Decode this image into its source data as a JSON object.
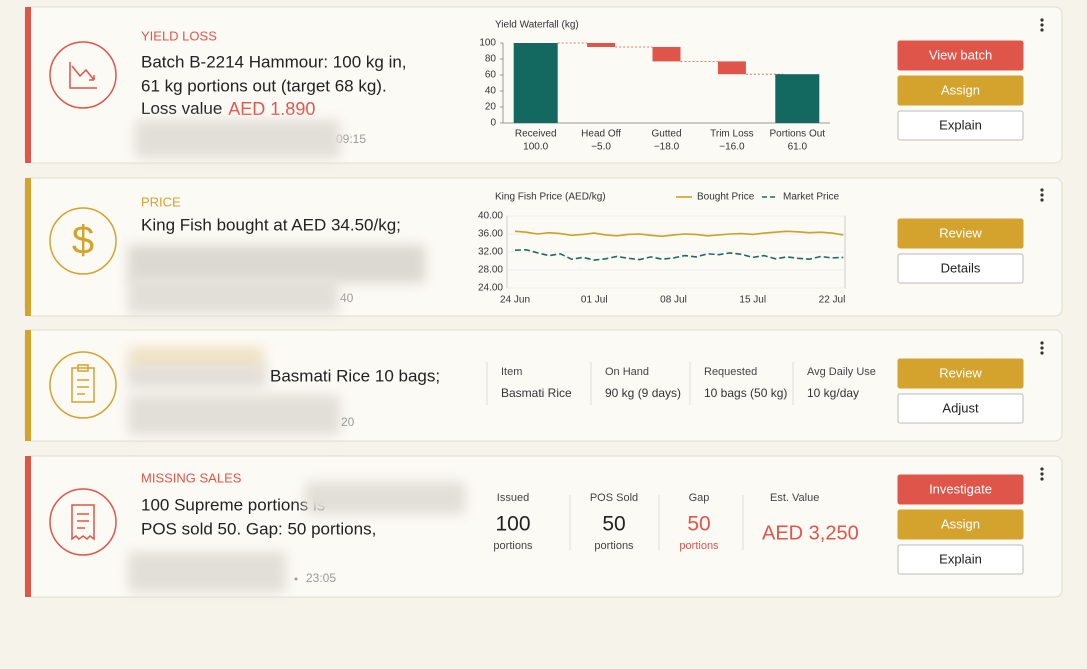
{
  "cards": [
    {
      "tag": "YIELD LOSS",
      "lines": [
        "Batch B-2214 Hammour: 100 kg in,",
        "61 kg portions out (target 68 kg)."
      ],
      "loss_label": "Loss value",
      "loss_value": "AED 1.890",
      "time": "09:15",
      "chart_data": {
        "type": "waterfall",
        "title": "Yield Waterfall (kg)",
        "categories": [
          "Received",
          "Head Off",
          "Gutted",
          "Trim Loss",
          "Portions Out"
        ],
        "values": [
          100,
          -5,
          -18,
          -16,
          61
        ],
        "value_labels": [
          "100.0",
          "−5.0",
          "−18.0",
          "−16.0",
          "61.0"
        ],
        "total_color": "#13695f",
        "loss_color": "#e0554a",
        "ylim": [
          0,
          100
        ],
        "yticks": [
          0,
          20,
          40,
          60,
          80,
          100
        ]
      },
      "buttons": [
        "View batch",
        "Assign",
        "Explain"
      ]
    },
    {
      "tag": "PRICE",
      "lines": [
        "King Fish bought at AED 34.50/kg;"
      ],
      "time": "40",
      "chart_data": {
        "type": "line",
        "title": "King Fish Price (AED/kg)",
        "categories": [
          "24 Jun",
          null,
          null,
          null,
          null,
          null,
          null,
          "01 Jul",
          null,
          null,
          null,
          null,
          null,
          null,
          "08 Jul",
          null,
          null,
          null,
          null,
          null,
          null,
          "15 Jul",
          null,
          null,
          null,
          null,
          null,
          null,
          "22 Jul",
          null
        ],
        "series": [
          {
            "name": "Bought Price",
            "color": "#c9a227",
            "values": [
              36.6,
              36.4,
              36.0,
              36.3,
              36.1,
              35.7,
              35.9,
              36.2,
              35.8,
              35.6,
              35.9,
              36.0,
              35.7,
              35.5,
              35.8,
              36.0,
              35.9,
              35.6,
              35.8,
              36.0,
              36.1,
              35.9,
              36.2,
              36.4,
              36.6,
              36.5,
              36.3,
              36.4,
              36.2,
              35.8
            ]
          },
          {
            "name": "Market Price",
            "color": "#1e6b63",
            "dashed": true,
            "values": [
              32.4,
              32.5,
              31.8,
              31.2,
              31.6,
              30.4,
              30.8,
              30.2,
              30.5,
              31.0,
              30.6,
              30.3,
              30.9,
              30.4,
              30.7,
              31.2,
              30.9,
              31.6,
              31.4,
              31.8,
              31.5,
              30.8,
              31.2,
              30.5,
              30.9,
              30.6,
              30.4,
              31.0,
              30.7,
              30.8
            ]
          }
        ],
        "ylim": [
          24,
          40
        ],
        "yticks": [
          {
            "value": 24,
            "label": "24.00"
          },
          {
            "value": 28,
            "label": "28.00"
          },
          {
            "value": 32,
            "label": "32.00"
          },
          {
            "value": 36,
            "label": "36.00"
          },
          {
            "value": 40,
            "label": "40.00"
          }
        ]
      },
      "buttons": [
        "Review",
        "Details"
      ]
    },
    {
      "lines": [
        "Basmati Rice 10 bags;"
      ],
      "time": "20",
      "table": {
        "headers": [
          "Item",
          "On Hand",
          "Requested",
          "Avg Daily Use"
        ],
        "values": [
          "Basmati Rice",
          "90 kg (9 days)",
          "10 bags (50 kg)",
          "10 kg/day"
        ]
      },
      "buttons": [
        "Review",
        "Adjust"
      ]
    },
    {
      "tag": "MISSING SALES",
      "lines": [
        "100 Supreme portions is",
        "POS sold 50. Gap: 50 portions,"
      ],
      "time": "23:05",
      "stats": [
        {
          "label": "Issued",
          "value": "100",
          "unit": "portions"
        },
        {
          "label": "POS Sold",
          "value": "50",
          "unit": "portions"
        },
        {
          "label": "Gap",
          "value": "50",
          "unit": "portions"
        },
        {
          "label": "Est. Value",
          "value": "AED 3,250"
        }
      ],
      "buttons": [
        "Investigate",
        "Assign",
        "Explain"
      ]
    }
  ]
}
